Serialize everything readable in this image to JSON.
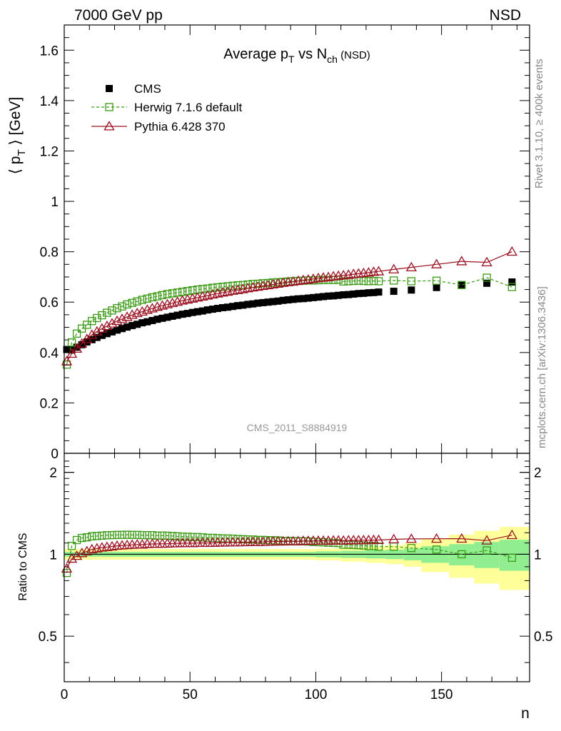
{
  "header": {
    "left": "7000 GeV pp",
    "right": "NSD"
  },
  "side_labels": {
    "rivet": "Rivet 3.1.10, ≥ 400k events",
    "mcplots": "mcplots.cern.ch [arXiv:1306.3436]"
  },
  "watermark": "CMS_2011_S8884919",
  "colors": {
    "cms": "#000000",
    "herwig": "#3a9a14",
    "pythia": "#9b1020",
    "band_inner": "#90ee90",
    "band_outer": "#ffff99"
  },
  "chart_data": [
    {
      "type": "scatter",
      "title": "Average p_T vs N_ch (NSD)",
      "ylabel": "⟨ p_T ⟩ [GeV]",
      "xlim": [
        0,
        185
      ],
      "ylim": [
        0,
        1.7
      ],
      "yticks": [
        0,
        0.2,
        0.4,
        0.6,
        0.8,
        1,
        1.2,
        1.4,
        1.6
      ],
      "ytick_labels": [
        "0",
        "0.2",
        "0.4",
        "0.6",
        "0.8",
        "1",
        "1.2",
        "1.4",
        "1.6"
      ],
      "legend_position": "top-left",
      "series": [
        {
          "name": "CMS",
          "marker": "filled-square",
          "x": [
            1,
            3,
            5,
            7,
            9,
            11,
            13,
            15,
            17,
            19,
            21,
            23,
            25,
            27,
            29,
            31,
            33,
            35,
            37,
            39,
            41,
            43,
            45,
            47,
            49,
            51,
            53,
            55,
            57,
            59,
            61,
            63,
            65,
            67,
            69,
            71,
            73,
            75,
            77,
            79,
            81,
            83,
            85,
            87,
            89,
            91,
            93,
            95,
            97,
            99,
            101,
            103,
            105,
            107,
            109,
            111,
            113,
            115,
            117,
            119,
            121,
            123,
            125,
            131,
            138,
            148,
            158,
            168,
            178
          ],
          "y": [
            0.412,
            0.41,
            0.421,
            0.431,
            0.442,
            0.451,
            0.46,
            0.468,
            0.475,
            0.482,
            0.489,
            0.495,
            0.501,
            0.507,
            0.512,
            0.518,
            0.522,
            0.527,
            0.532,
            0.536,
            0.54,
            0.544,
            0.548,
            0.552,
            0.555,
            0.559,
            0.562,
            0.565,
            0.569,
            0.572,
            0.575,
            0.578,
            0.58,
            0.583,
            0.586,
            0.588,
            0.591,
            0.593,
            0.596,
            0.598,
            0.6,
            0.602,
            0.604,
            0.607,
            0.609,
            0.611,
            0.613,
            0.614,
            0.616,
            0.618,
            0.62,
            0.622,
            0.624,
            0.625,
            0.627,
            0.629,
            0.63,
            0.632,
            0.634,
            0.635,
            0.637,
            0.638,
            0.64,
            0.643,
            0.648,
            0.658,
            0.668,
            0.675,
            0.68
          ]
        },
        {
          "name": "Herwig 7.1.6 default",
          "marker": "open-square",
          "line": "dashed",
          "x": [
            1,
            3,
            5,
            7,
            9,
            11,
            13,
            15,
            17,
            19,
            21,
            23,
            25,
            27,
            29,
            31,
            33,
            35,
            37,
            39,
            41,
            43,
            45,
            47,
            49,
            51,
            53,
            55,
            57,
            59,
            61,
            63,
            65,
            67,
            69,
            71,
            73,
            75,
            77,
            79,
            81,
            83,
            85,
            87,
            89,
            91,
            93,
            95,
            97,
            99,
            101,
            103,
            105,
            107,
            109,
            111,
            113,
            115,
            117,
            119,
            121,
            123,
            125,
            131,
            138,
            148,
            158,
            168,
            178
          ],
          "y": [
            0.352,
            0.44,
            0.475,
            0.495,
            0.51,
            0.525,
            0.537,
            0.548,
            0.558,
            0.567,
            0.576,
            0.583,
            0.591,
            0.597,
            0.603,
            0.609,
            0.614,
            0.619,
            0.623,
            0.628,
            0.632,
            0.635,
            0.638,
            0.641,
            0.644,
            0.647,
            0.65,
            0.652,
            0.654,
            0.657,
            0.659,
            0.661,
            0.663,
            0.665,
            0.667,
            0.668,
            0.67,
            0.672,
            0.673,
            0.675,
            0.676,
            0.678,
            0.679,
            0.68,
            0.682,
            0.683,
            0.684,
            0.685,
            0.686,
            0.686,
            0.687,
            0.688,
            0.688,
            0.688,
            0.689,
            0.682,
            0.683,
            0.684,
            0.685,
            0.684,
            0.683,
            0.684,
            0.683,
            0.686,
            0.683,
            0.685,
            0.668,
            0.697,
            0.66
          ]
        },
        {
          "name": "Pythia 6.428 370",
          "marker": "open-triangle",
          "line": "solid",
          "x": [
            1,
            3,
            5,
            7,
            9,
            11,
            13,
            15,
            17,
            19,
            21,
            23,
            25,
            27,
            29,
            31,
            33,
            35,
            37,
            39,
            41,
            43,
            45,
            47,
            49,
            51,
            53,
            55,
            57,
            59,
            61,
            63,
            65,
            67,
            69,
            71,
            73,
            75,
            77,
            79,
            81,
            83,
            85,
            87,
            89,
            91,
            93,
            95,
            97,
            99,
            101,
            103,
            105,
            107,
            109,
            111,
            113,
            115,
            117,
            119,
            121,
            123,
            125,
            131,
            138,
            148,
            158,
            168,
            178
          ],
          "y": [
            0.365,
            0.395,
            0.415,
            0.435,
            0.453,
            0.47,
            0.483,
            0.495,
            0.505,
            0.515,
            0.525,
            0.533,
            0.541,
            0.549,
            0.556,
            0.562,
            0.569,
            0.575,
            0.581,
            0.586,
            0.591,
            0.596,
            0.601,
            0.606,
            0.61,
            0.614,
            0.618,
            0.622,
            0.626,
            0.63,
            0.634,
            0.638,
            0.641,
            0.645,
            0.648,
            0.651,
            0.655,
            0.658,
            0.661,
            0.664,
            0.667,
            0.67,
            0.673,
            0.676,
            0.679,
            0.681,
            0.684,
            0.687,
            0.689,
            0.692,
            0.695,
            0.697,
            0.699,
            0.702,
            0.704,
            0.706,
            0.708,
            0.711,
            0.713,
            0.715,
            0.717,
            0.72,
            0.722,
            0.73,
            0.738,
            0.75,
            0.762,
            0.758,
            0.8
          ]
        }
      ]
    },
    {
      "type": "scatter",
      "ylabel": "Ratio to CMS",
      "xlabel": "n",
      "xlim": [
        0,
        185
      ],
      "ylim": [
        0.34,
        2.35
      ],
      "yscale": "log",
      "xticks": [
        0,
        50,
        100,
        150
      ],
      "xtick_labels": [
        "0",
        "50",
        "100",
        "150"
      ],
      "yticks": [
        0.5,
        1,
        2
      ],
      "ytick_labels": [
        "0.5",
        "1",
        "2"
      ],
      "bands": {
        "x_edges": [
          0,
          40,
          100,
          110,
          120,
          128,
          135,
          142,
          153,
          163,
          173,
          185
        ],
        "inner_half": [
          0.02,
          0.02,
          0.025,
          0.03,
          0.035,
          0.04,
          0.05,
          0.07,
          0.09,
          0.11,
          0.13
        ],
        "outer_half": [
          0.045,
          0.045,
          0.05,
          0.06,
          0.07,
          0.08,
          0.1,
          0.14,
          0.18,
          0.22,
          0.26
        ]
      },
      "series": [
        {
          "name": "Herwig 7.1.6 default",
          "x": [
            1,
            3,
            5,
            7,
            9,
            11,
            13,
            15,
            17,
            19,
            21,
            23,
            25,
            27,
            29,
            31,
            33,
            35,
            37,
            39,
            41,
            43,
            45,
            47,
            49,
            51,
            53,
            55,
            57,
            59,
            61,
            63,
            65,
            67,
            69,
            71,
            73,
            75,
            77,
            79,
            81,
            83,
            85,
            87,
            89,
            91,
            93,
            95,
            97,
            99,
            101,
            103,
            105,
            107,
            109,
            111,
            113,
            115,
            117,
            119,
            121,
            123,
            125,
            131,
            138,
            148,
            158,
            168,
            178
          ],
          "y": [
            0.854,
            1.073,
            1.128,
            1.148,
            1.154,
            1.164,
            1.167,
            1.171,
            1.175,
            1.176,
            1.178,
            1.178,
            1.18,
            1.178,
            1.178,
            1.176,
            1.176,
            1.175,
            1.171,
            1.172,
            1.17,
            1.167,
            1.164,
            1.161,
            1.16,
            1.157,
            1.157,
            1.154,
            1.149,
            1.149,
            1.146,
            1.144,
            1.143,
            1.141,
            1.138,
            1.136,
            1.134,
            1.133,
            1.129,
            1.129,
            1.127,
            1.126,
            1.124,
            1.12,
            1.12,
            1.118,
            1.116,
            1.116,
            1.114,
            1.11,
            1.108,
            1.106,
            1.103,
            1.101,
            1.099,
            1.084,
            1.084,
            1.082,
            1.08,
            1.077,
            1.072,
            1.072,
            1.067,
            1.067,
            1.054,
            1.041,
            1.0,
            1.033,
            0.971
          ]
        },
        {
          "name": "Pythia 6.428 370",
          "x": [
            1,
            3,
            5,
            7,
            9,
            11,
            13,
            15,
            17,
            19,
            21,
            23,
            25,
            27,
            29,
            31,
            33,
            35,
            37,
            39,
            41,
            43,
            45,
            47,
            49,
            51,
            53,
            55,
            57,
            59,
            61,
            63,
            65,
            67,
            69,
            71,
            73,
            75,
            77,
            79,
            81,
            83,
            85,
            87,
            89,
            91,
            93,
            95,
            97,
            99,
            101,
            103,
            105,
            107,
            109,
            111,
            113,
            115,
            117,
            119,
            121,
            123,
            125,
            131,
            138,
            148,
            158,
            168,
            178
          ],
          "y": [
            0.886,
            0.963,
            0.986,
            1.009,
            1.025,
            1.042,
            1.05,
            1.058,
            1.063,
            1.068,
            1.074,
            1.077,
            1.08,
            1.083,
            1.086,
            1.085,
            1.09,
            1.091,
            1.092,
            1.093,
            1.094,
            1.096,
            1.097,
            1.098,
            1.099,
            1.098,
            1.1,
            1.101,
            1.1,
            1.101,
            1.103,
            1.104,
            1.105,
            1.106,
            1.106,
            1.107,
            1.108,
            1.11,
            1.109,
            1.11,
            1.112,
            1.113,
            1.114,
            1.114,
            1.115,
            1.115,
            1.116,
            1.119,
            1.119,
            1.12,
            1.121,
            1.121,
            1.12,
            1.123,
            1.123,
            1.122,
            1.124,
            1.125,
            1.125,
            1.126,
            1.126,
            1.128,
            1.128,
            1.135,
            1.139,
            1.14,
            1.141,
            1.123,
            1.176
          ]
        }
      ]
    }
  ]
}
